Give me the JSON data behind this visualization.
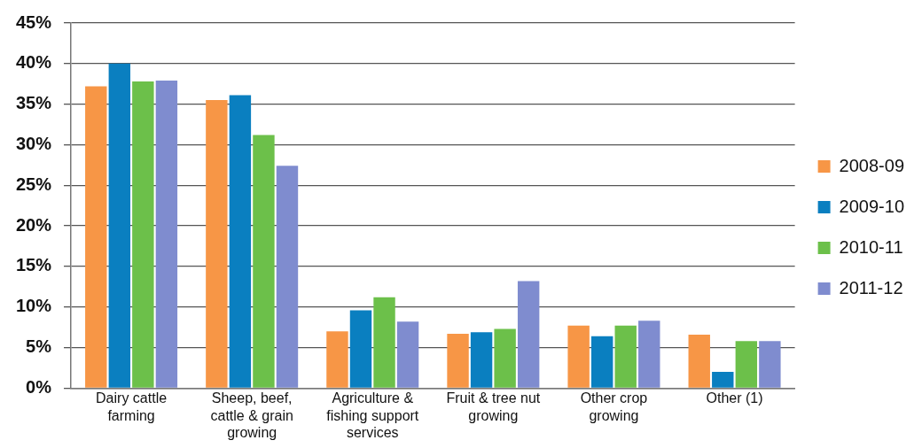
{
  "chart_data": {
    "type": "bar",
    "categories": [
      "Dairy cattle farming",
      "Sheep, beef, cattle & grain growing",
      "Agriculture & fishing support services",
      "Fruit & tree nut growing",
      "Other crop growing",
      "Other (1)"
    ],
    "series": [
      {
        "name": "2008-09",
        "color": "#f79646",
        "values": [
          37.2,
          35.5,
          7.0,
          6.7,
          7.7,
          6.6
        ]
      },
      {
        "name": "2009-10",
        "color": "#0a7fc0",
        "values": [
          40.0,
          36.1,
          9.6,
          6.9,
          6.4,
          2.0
        ]
      },
      {
        "name": "2010-11",
        "color": "#6cc04a",
        "values": [
          37.8,
          31.2,
          11.2,
          7.3,
          7.7,
          5.8
        ]
      },
      {
        "name": "2011-12",
        "color": "#7f8ccf",
        "values": [
          37.9,
          27.4,
          8.2,
          13.2,
          8.3,
          5.8
        ]
      }
    ],
    "ylim": [
      0,
      45
    ],
    "yticks": [
      {
        "value": 0,
        "label": "0%"
      },
      {
        "value": 5,
        "label": "5%"
      },
      {
        "value": 10,
        "label": "10%"
      },
      {
        "value": 15,
        "label": "15%"
      },
      {
        "value": 20,
        "label": "20%"
      },
      {
        "value": 25,
        "label": "25%"
      },
      {
        "value": 30,
        "label": "30%"
      },
      {
        "value": 35,
        "label": "35%"
      },
      {
        "value": 40,
        "label": "40%"
      },
      {
        "value": 45,
        "label": "45%"
      }
    ],
    "grid": "y",
    "legend": "right"
  }
}
